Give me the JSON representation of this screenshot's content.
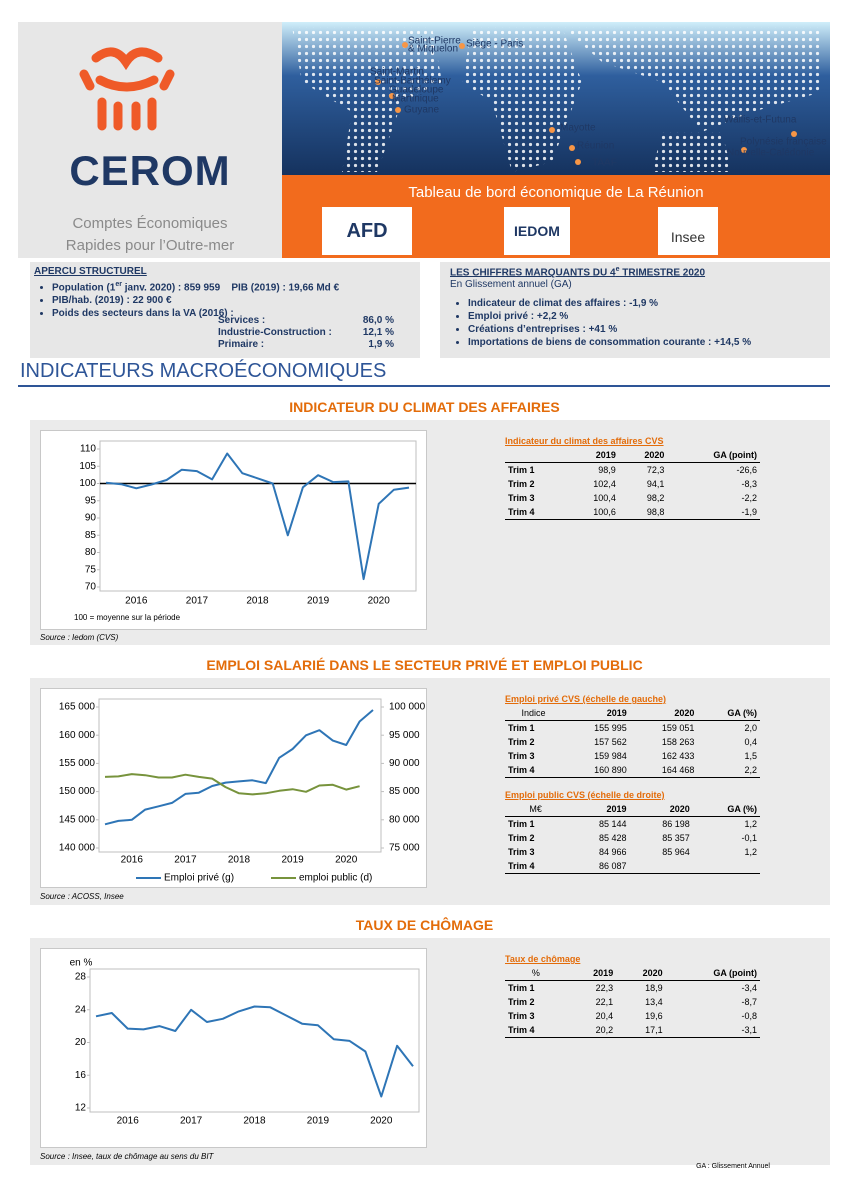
{
  "header": {
    "logo": "CEROM",
    "subtitle": [
      "Comptes Économiques",
      "Rapides pour l’Outre-mer"
    ],
    "banner": "Tableau de bord économique de La Réunion",
    "partners": [
      "AFD",
      "IEDOM",
      "Insee"
    ],
    "map_labels": [
      "Saint-Pierre",
      "& Miquelon",
      "Siège - Paris",
      "Saint-Martin",
      "Saint-Barthélemy",
      "Guadeloupe",
      "Martinique",
      "Guyane",
      "Mayotte",
      "Réunion",
      "TAAF",
      "Wallis-et-Futuna",
      "Polynésie française",
      "Nouvelle-Calédonie"
    ]
  },
  "structure": {
    "title": "APERCU STRUCTUREL",
    "population_pre": "Population (1",
    "population_sup": "er",
    "population_post": " janv. 2020) : 859 959",
    "pib": "PIB (2019) : 19,66 Md €",
    "pib_hab": "PIB/hab. (2019) : 22 900 €",
    "sectors_title": "Poids des secteurs dans la VA (2016) :",
    "sectors": [
      [
        "Services  :",
        "86,0 %"
      ],
      [
        "Industrie-Construction :",
        "12,1 %"
      ],
      [
        "Primaire :",
        "1,9 %"
      ]
    ]
  },
  "highlights": {
    "title_pre": "LES CHIFFRES MARQUANTS DU 4",
    "title_sup": "e",
    "title_post": " TRIMESTRE 2020",
    "subtitle": "En Glissement annuel (GA)",
    "items": [
      "Indicateur de climat des affaires :  -1,9 %",
      "Emploi privé :  +2,2 %",
      "Créations d’entreprises : +41 %",
      "Importations de biens de consommation courante : +14,5 %"
    ]
  },
  "section_title": "INDICATEURS MACROÉCONOMIQUES",
  "chart_data": [
    {
      "type": "line",
      "title": "INDICATEUR DU CLIMAT DES AFFAIRES",
      "categories": [
        null,
        null,
        "2016",
        null,
        null,
        null,
        "2017",
        null,
        null,
        null,
        "2018",
        null,
        null,
        null,
        "2019",
        null,
        null,
        null,
        "2020",
        null,
        null
      ],
      "values": [
        100.2,
        99.8,
        98.6,
        99.7,
        101,
        104,
        103.6,
        101.2,
        108.7,
        103,
        101.5,
        100,
        85,
        98.9,
        102.4,
        100.4,
        100.6,
        72.3,
        94.1,
        98.2,
        98.8
      ],
      "color": "#2e75b6",
      "reference_line": 100,
      "reference_color": "#000000",
      "ylim": [
        70,
        110
      ],
      "yticks": [
        70,
        75,
        80,
        85,
        90,
        95,
        100,
        105,
        110
      ],
      "note": "100 = moyenne sur la période"
    },
    {
      "type": "line",
      "title": "EMPLOI SALARIÉ DANS LE SECTEUR PRIVÉ ET EMPLOI PUBLIC",
      "categories": [
        null,
        null,
        "2016",
        null,
        null,
        null,
        "2017",
        null,
        null,
        null,
        "2018",
        null,
        null,
        null,
        "2019",
        null,
        null,
        null,
        "2020",
        null,
        null
      ],
      "series": [
        {
          "name": "Emploi privé (g)",
          "color": "#2e75b6",
          "values": [
            144200,
            144800,
            145000,
            146800,
            147400,
            148000,
            149600,
            149800,
            151000,
            151600,
            151800,
            152000,
            151500,
            155995,
            157562,
            159984,
            160890,
            159051,
            158263,
            162433,
            164468
          ]
        },
        {
          "name": "emploi public (d)",
          "color": "#77933c",
          "axis": "y2",
          "values": [
            87600,
            87700,
            88100,
            87900,
            87500,
            87500,
            88000,
            87600,
            87300,
            85800,
            84700,
            84500,
            84700,
            85144,
            85428,
            84966,
            86087,
            86198,
            85357,
            85964,
            null
          ]
        }
      ],
      "ylim": [
        140000,
        165000
      ],
      "yticks": [
        {
          "value": 140000,
          "label": "140 000"
        },
        {
          "value": 145000,
          "label": "145 000"
        },
        {
          "value": 150000,
          "label": "150 000"
        },
        {
          "value": 155000,
          "label": "155 000"
        },
        {
          "value": 160000,
          "label": "160 000"
        },
        {
          "value": 165000,
          "label": "165 000"
        }
      ],
      "y2lim": [
        75000,
        100000
      ],
      "y2ticks": [
        {
          "value": 75000,
          "label": "75 000"
        },
        {
          "value": 80000,
          "label": "80 000"
        },
        {
          "value": 85000,
          "label": "85 000"
        },
        {
          "value": 90000,
          "label": "90 000"
        },
        {
          "value": 95000,
          "label": "95 000"
        },
        {
          "value": 100000,
          "label": "100 000"
        }
      ]
    },
    {
      "type": "line",
      "title": "TAUX DE CHÔMAGE",
      "categories": [
        null,
        null,
        "2016",
        null,
        null,
        null,
        "2017",
        null,
        null,
        null,
        "2018",
        null,
        null,
        null,
        "2019",
        null,
        null,
        null,
        "2020",
        null,
        null
      ],
      "values": [
        23.2,
        23.6,
        21.7,
        21.6,
        22.0,
        21.4,
        24.0,
        22.5,
        22.9,
        23.8,
        24.4,
        24.3,
        23.3,
        22.3,
        22.1,
        20.4,
        20.2,
        18.9,
        13.4,
        19.6,
        17.1
      ],
      "color": "#2e75b6",
      "ylabel": "en %",
      "ylim": [
        12,
        28
      ],
      "yticks": [
        12,
        16,
        20,
        24,
        28
      ]
    }
  ],
  "sections": [
    {
      "source": "Source : Iedom (CVS)",
      "tables": [
        {
          "title": "Indicateur du climat des affaires CVS",
          "header": [
            "2019",
            "2020",
            "GA (point)"
          ],
          "rows": [
            [
              "Trim 1",
              "98,9",
              "72,3",
              "-26,6"
            ],
            [
              "Trim 2",
              "102,4",
              "94,1",
              "-8,3"
            ],
            [
              "Trim 3",
              "100,4",
              "98,2",
              "-2,2"
            ],
            [
              "Trim 4",
              "100,6",
              "98,8",
              "-1,9"
            ]
          ]
        }
      ]
    },
    {
      "source": "Source : ACOSS, Insee",
      "tables": [
        {
          "title": "Emploi privé CVS (échelle de gauche)",
          "header": [
            "Indice",
            "2019",
            "2020",
            "GA (%)"
          ],
          "rows": [
            [
              "Trim 1",
              "155 995",
              "159 051",
              "2,0"
            ],
            [
              "Trim 2",
              "157 562",
              "158 263",
              "0,4"
            ],
            [
              "Trim 3",
              "159 984",
              "162 433",
              "1,5"
            ],
            [
              "Trim 4",
              "160 890",
              "164 468",
              "2,2"
            ]
          ]
        },
        {
          "title": "Emploi public CVS (échelle de droite)",
          "header": [
            "M€",
            "2019",
            "2020",
            "GA (%)"
          ],
          "rows": [
            [
              "Trim 1",
              "85 144",
              "86 198",
              "1,2"
            ],
            [
              "Trim 2",
              "85 428",
              "85 357",
              "-0,1"
            ],
            [
              "Trim 3",
              "84 966",
              "85 964",
              "1,2"
            ],
            [
              "Trim 4",
              "86 087"
            ]
          ]
        }
      ]
    },
    {
      "source": "Source : Insee, taux de chômage au sens du BIT",
      "tables": [
        {
          "title": "Taux de chômage",
          "header": [
            "%",
            "2019",
            "2020",
            "GA (point)"
          ],
          "rows": [
            [
              "Trim 1",
              "22,3",
              "18,9",
              "-3,4"
            ],
            [
              "Trim 2",
              "22,1",
              "13,4",
              "-8,7"
            ],
            [
              "Trim 3",
              "20,4",
              "19,6",
              "-0,8"
            ],
            [
              "Trim 4",
              "20,2",
              "17,1",
              "-3,1"
            ]
          ]
        }
      ]
    }
  ],
  "footnote": "GA : Glissement Annuel"
}
